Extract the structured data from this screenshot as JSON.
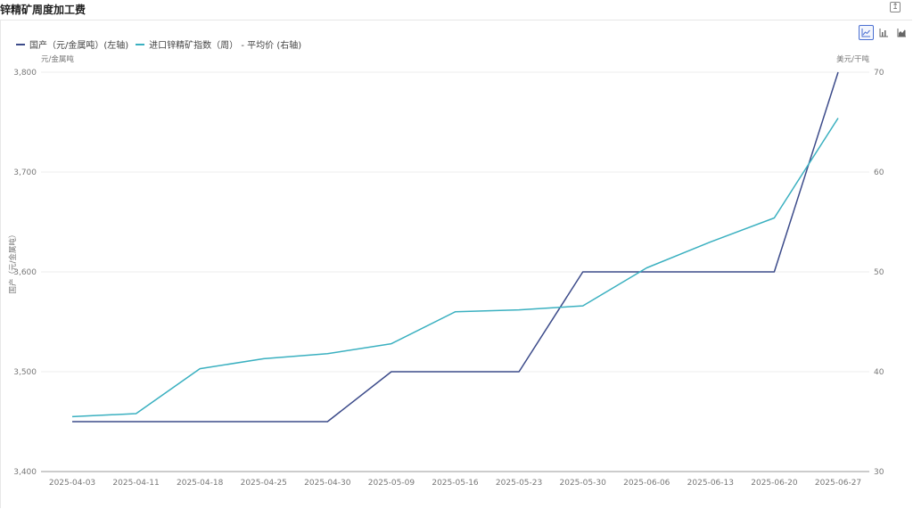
{
  "header": {
    "title": "锌精矿周度加工费",
    "export_icon": "export-icon"
  },
  "toolbar": {
    "buttons": [
      {
        "name": "line-chart-icon",
        "active": true
      },
      {
        "name": "bar-chart-icon",
        "active": false
      },
      {
        "name": "area-chart-icon",
        "active": false
      }
    ]
  },
  "colors": {
    "series_left": "#3c4b8a",
    "series_right": "#3ab0c0",
    "grid": "#eeeeee",
    "axis": "#999999"
  },
  "chart_data": {
    "type": "line",
    "x": [
      "2025-04-03",
      "2025-04-11",
      "2025-04-18",
      "2025-04-25",
      "2025-04-30",
      "2025-05-09",
      "2025-05-16",
      "2025-05-23",
      "2025-05-30",
      "2025-06-06",
      "2025-06-13",
      "2025-06-20",
      "2025-06-27"
    ],
    "series": [
      {
        "name": "国产（元/金属吨）(左轴)",
        "axis": "left",
        "values": [
          3450,
          3450,
          3450,
          3450,
          3450,
          3500,
          3500,
          3500,
          3600,
          3600,
          3600,
          3600,
          3800
        ]
      },
      {
        "name": "进口锌精矿指数（周） - 平均价 (右轴)",
        "axis": "right",
        "values": [
          35.5,
          35.8,
          40.3,
          41.3,
          41.8,
          42.8,
          46.0,
          46.2,
          46.6,
          50.4,
          53.0,
          55.4,
          65.4
        ]
      }
    ],
    "left_axis": {
      "unit": "元/金属吨",
      "label": "国产（元/金属吨）",
      "min": 3400,
      "max": 3800,
      "ticks": [
        "3,400",
        "3,500",
        "3,600",
        "3,700",
        "3,800"
      ]
    },
    "right_axis": {
      "unit": "美元/干吨",
      "min": 30,
      "max": 70,
      "ticks": [
        "30",
        "40",
        "50",
        "60",
        "70"
      ]
    },
    "grid": true,
    "legend": "top-left"
  }
}
